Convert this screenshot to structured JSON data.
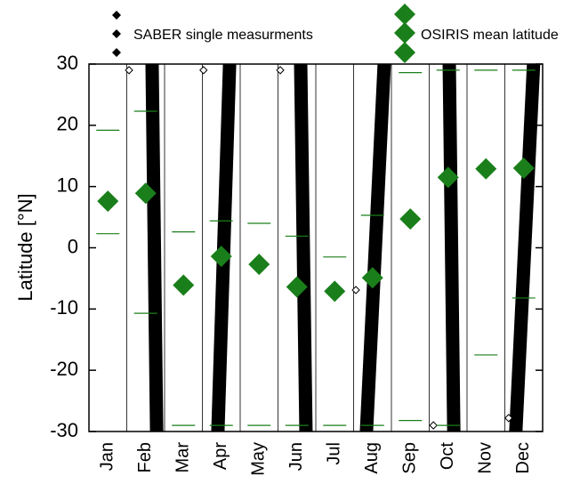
{
  "chart_data": {
    "type": "scatter",
    "ylabel": "Latitude [°N]",
    "categories": [
      "Jan",
      "Feb",
      "Mar",
      "Apr",
      "May",
      "Jun",
      "Jul",
      "Aug",
      "Sep",
      "Oct",
      "Nov",
      "Dec"
    ],
    "xlim": [
      0,
      12
    ],
    "ylim": [
      -30,
      30
    ],
    "yticks": [
      -30,
      -20,
      -10,
      0,
      10,
      20,
      30
    ],
    "series": [
      {
        "name": "SABER single measurments",
        "color": "#000000",
        "tracks": [
          {
            "x": [
              1.67,
              1.79
            ],
            "y": [
              30,
              -30
            ]
          },
          {
            "x": [
              3.72,
              3.41
            ],
            "y": [
              30,
              -30
            ]
          },
          {
            "x": [
              5.6,
              5.74
            ],
            "y": [
              30,
              -30
            ]
          },
          {
            "x": [
              7.81,
              7.34
            ],
            "y": [
              30,
              -30
            ]
          },
          {
            "x": [
              9.53,
              9.65
            ],
            "y": [
              30,
              -30
            ]
          },
          {
            "x": [
              11.76,
              11.29
            ],
            "y": [
              30,
              -30
            ]
          }
        ],
        "points": {
          "x": [
            1.06,
            3.03,
            5.06,
            7.06,
            9.11,
            11.1
          ],
          "y": [
            29,
            29,
            29,
            -6.9,
            -29,
            -27.8
          ]
        }
      },
      {
        "name": "OSIRIS mean latitude",
        "color": "#1a7f1a",
        "values": [
          7.6,
          8.9,
          -6.1,
          -1.4,
          -2.7,
          -6.4,
          -7.1,
          -4.9,
          4.7,
          11.5,
          12.9,
          13.0
        ],
        "upper": [
          19.2,
          22.3,
          2.6,
          4.4,
          4.0,
          1.9,
          -1.5,
          5.3,
          28.6,
          29,
          29,
          29
        ],
        "lower": [
          2.3,
          -10.7,
          -29,
          -29,
          -29,
          -29,
          -29,
          -29,
          -28.2,
          -29,
          -17.5,
          -8.2
        ]
      }
    ]
  }
}
